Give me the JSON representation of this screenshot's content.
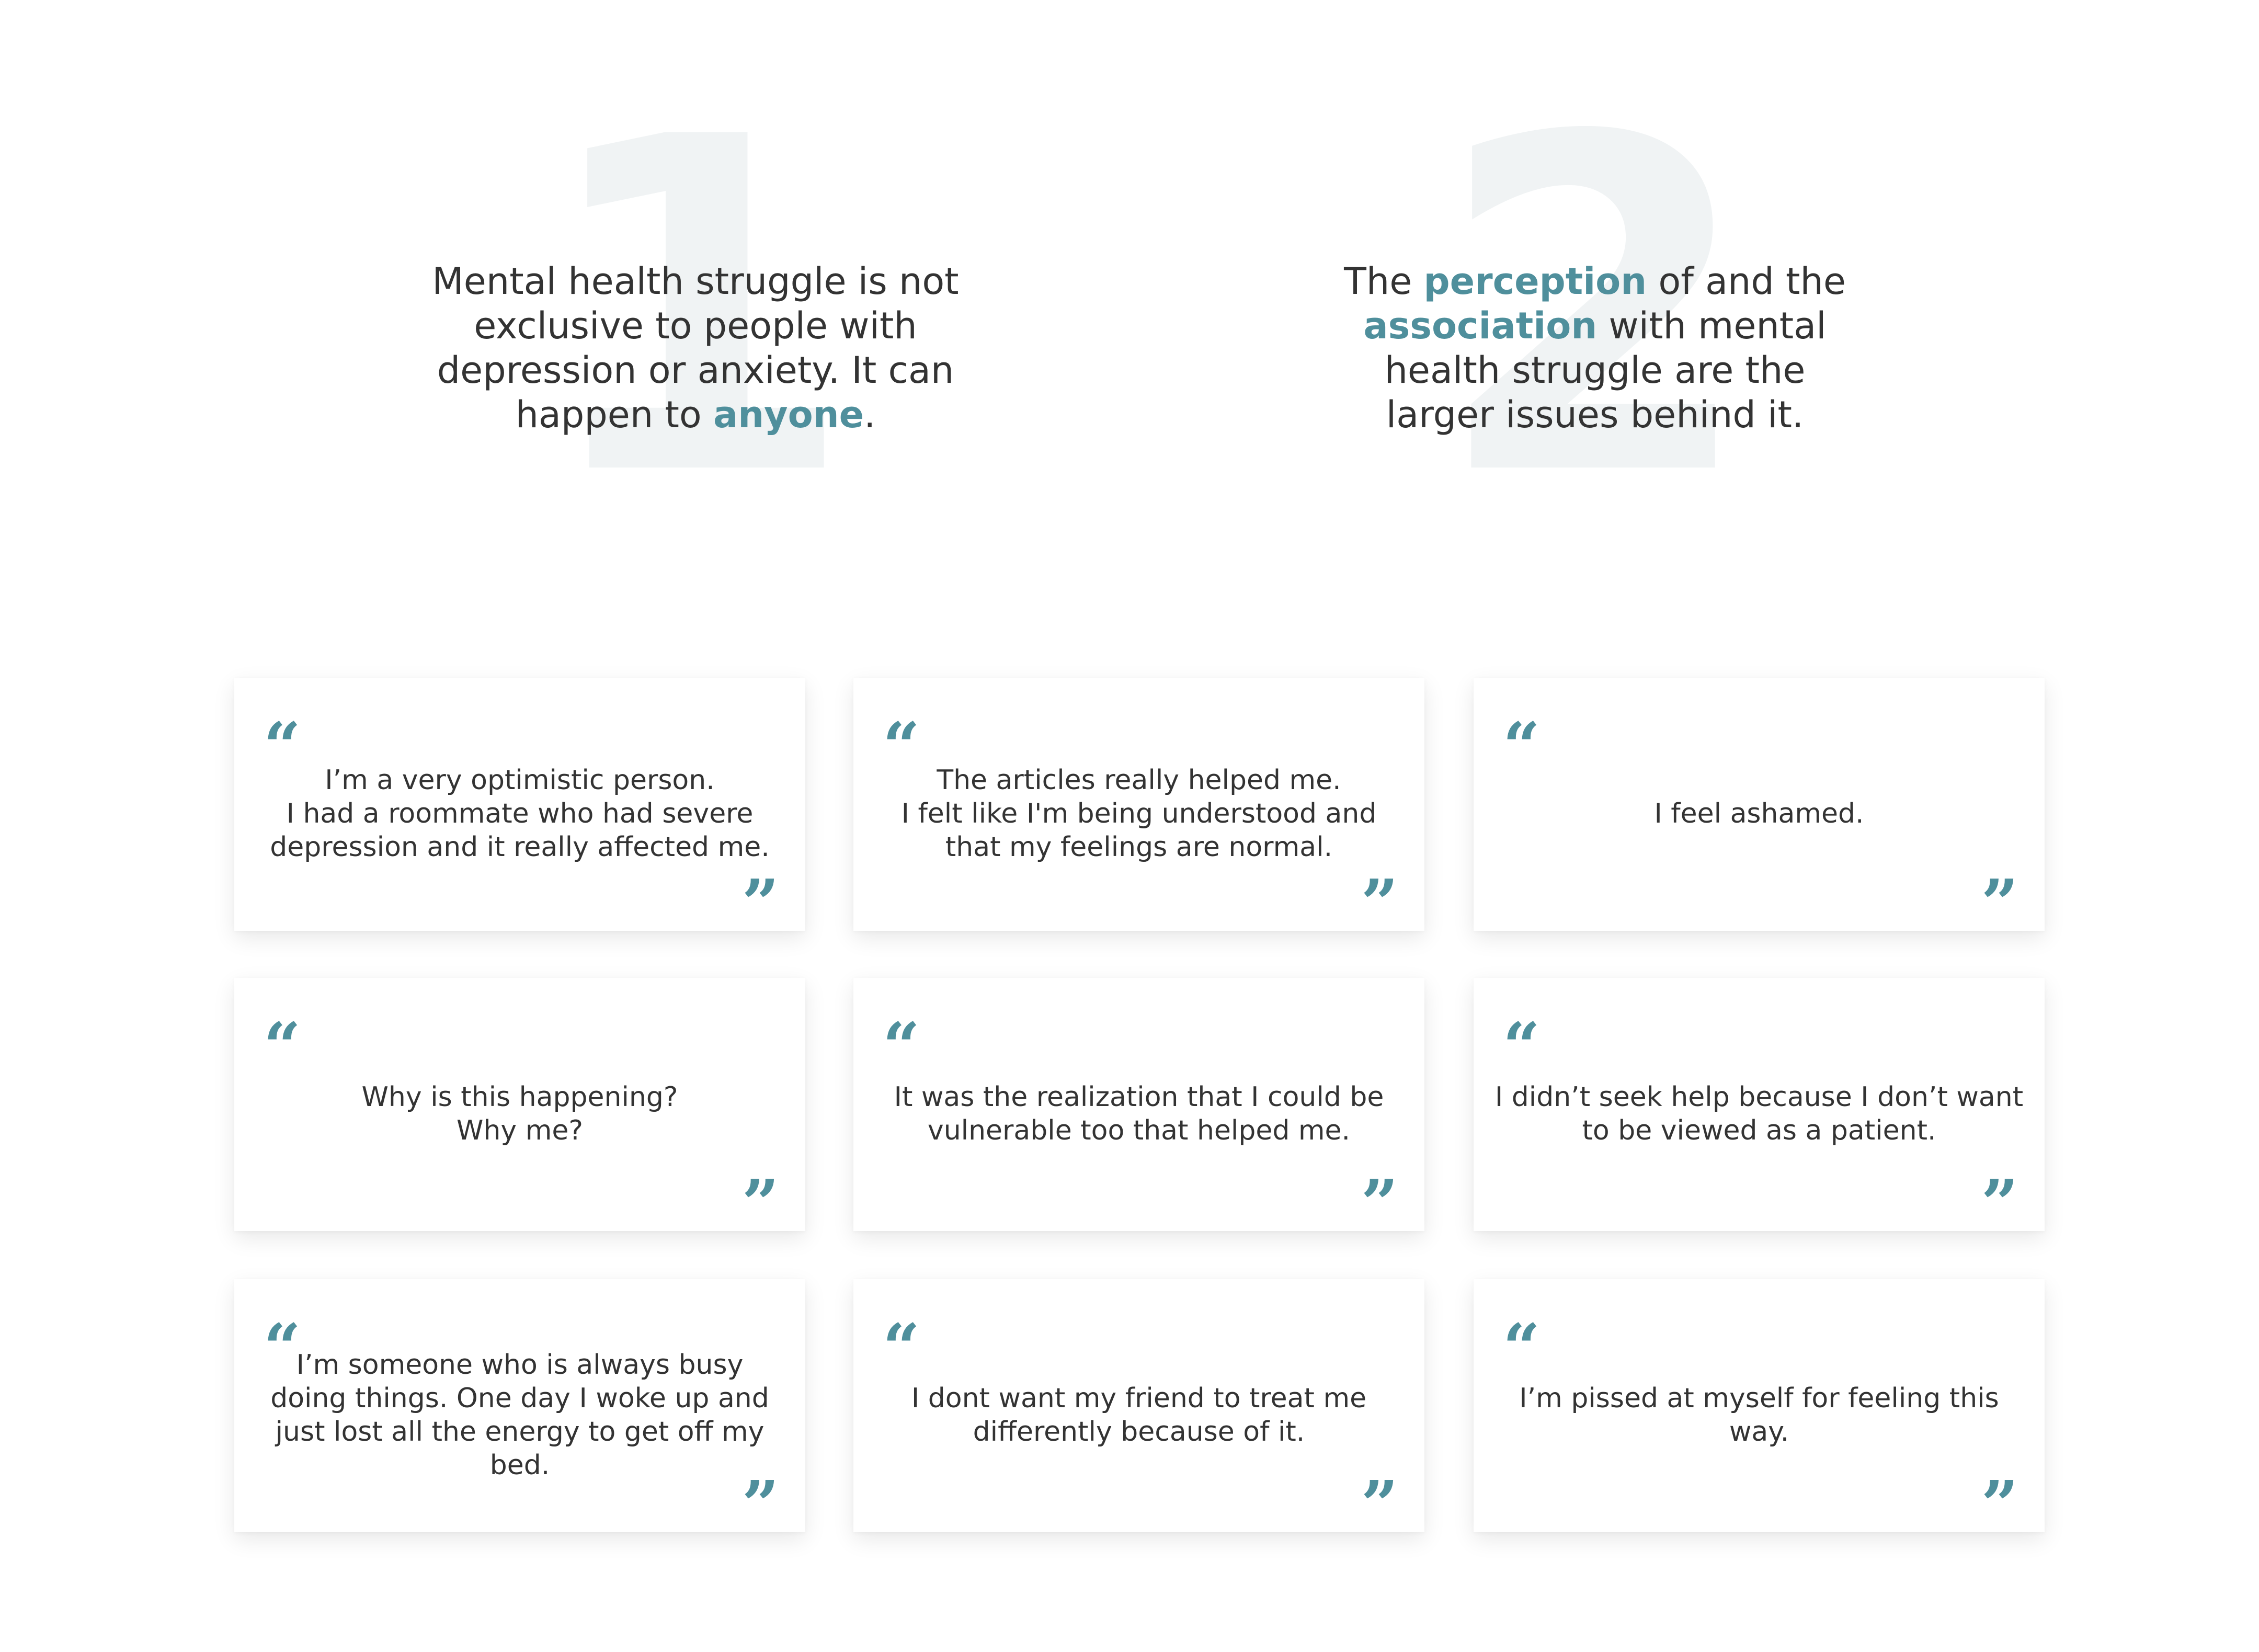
{
  "accent_color": "#4f8f9c",
  "insights": [
    {
      "number": "1",
      "before": "Mental health struggle is not exclusive to people with depression or anxiety. It can happen to ",
      "highlight": "anyone",
      "after": "."
    },
    {
      "number": "2",
      "before": "The ",
      "highlight1": "perception",
      "middle": " of and the ",
      "highlight2": "association",
      "after": " with mental health struggle are the larger issues behind it."
    }
  ],
  "quote_marks": {
    "open": "“",
    "close": "”"
  },
  "quotes": [
    "I’m a very optimistic person.\nI had a roommate who had severe depression and it really affected me.",
    "The articles really helped me.\nI felt like I'm being understood and that my feelings are normal.",
    "I feel ashamed.",
    "Why is this happening?\nWhy me?",
    "It was the realization that I could be vulnerable too that helped me.",
    "I didn’t seek help because I don’t want to be viewed as a patient.",
    "I’m someone who is always busy doing things. One day I woke up and just lost all the energy to get off my bed.",
    "I dont want my friend to treat me differently because of it.",
    "I’m pissed at myself for feeling this way."
  ]
}
